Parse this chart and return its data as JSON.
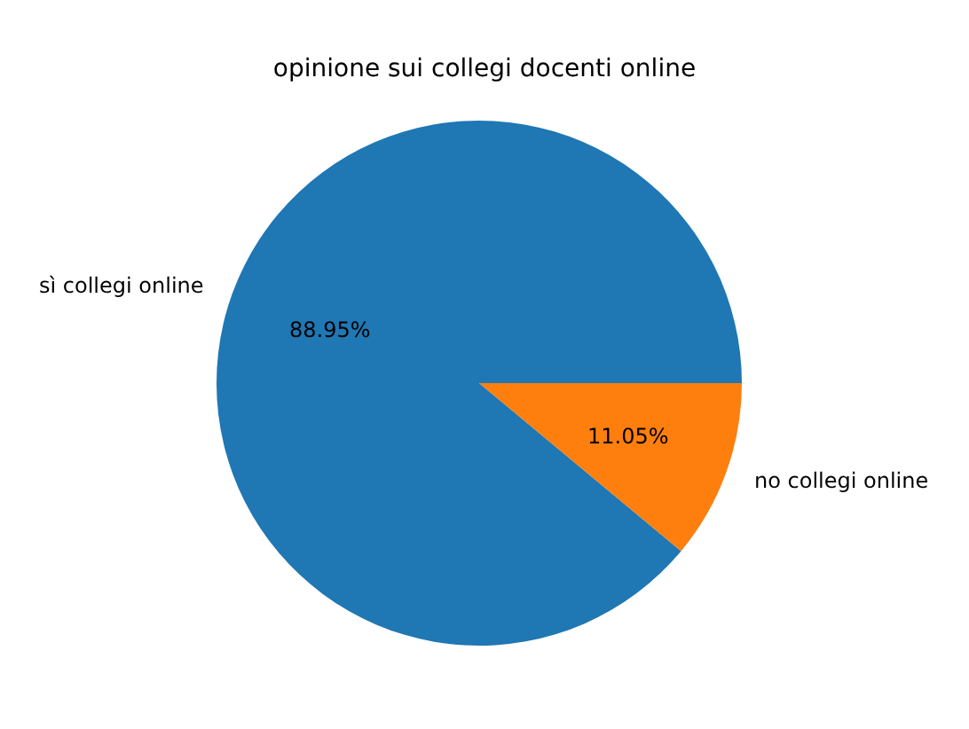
{
  "chart_data": {
    "type": "pie",
    "title": "opinione sui collegi docenti online",
    "categories": [
      "sì collegi online",
      "no collegi online"
    ],
    "values": [
      88.95,
      11.05
    ],
    "colors": [
      "#1f77b4",
      "#ff7f0e"
    ],
    "value_labels": [
      "88.95%",
      "11.05%"
    ]
  }
}
